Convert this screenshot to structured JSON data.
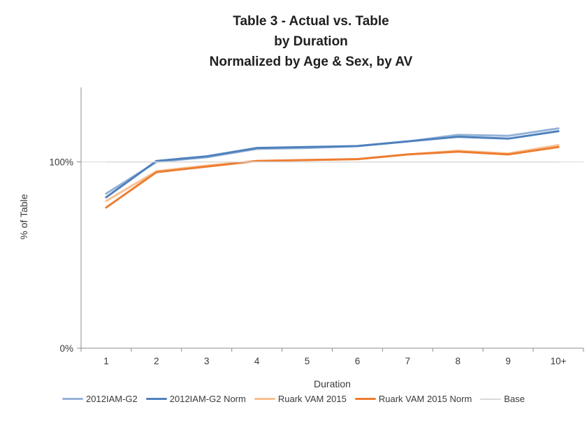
{
  "page": {
    "background": "#ffffff"
  },
  "chart_data": {
    "type": "line",
    "title_lines": [
      "Table 3 - Actual vs. Table",
      "by Duration",
      "Normalized by Age & Sex, by AV"
    ],
    "xlabel": "Duration",
    "ylabel": "% of Table",
    "categories": [
      "1",
      "2",
      "3",
      "4",
      "5",
      "6",
      "7",
      "8",
      "9",
      "10+"
    ],
    "ylim": [
      0,
      140
    ],
    "y_ticks": [
      {
        "value": 0,
        "label": "0%"
      },
      {
        "value": 100,
        "label": "100%"
      }
    ],
    "gridlines": [
      {
        "value": 100,
        "color": "#d9d9d9"
      }
    ],
    "legend_position": "bottom",
    "axis_color": "#8c8c8c",
    "tick_label_color": "#3a3a3a",
    "series": [
      {
        "name": "2012IAM-G2",
        "color": "#95B3D7",
        "width": 3,
        "values": [
          83,
          100,
          102.5,
          107,
          107.5,
          108.5,
          111,
          114.5,
          114,
          118
        ]
      },
      {
        "name": "2012IAM-G2 Norm",
        "color": "#4F81BD",
        "width": 3,
        "values": [
          81,
          100.5,
          103,
          107.5,
          108,
          108.5,
          111,
          113.5,
          112.5,
          116.5
        ]
      },
      {
        "name": "Ruark VAM 2015",
        "color": "#FABF8F",
        "width": 3,
        "values": [
          79,
          95,
          98,
          100.5,
          101,
          101.5,
          104,
          106,
          104.5,
          109
        ]
      },
      {
        "name": "Ruark VAM 2015 Norm",
        "color": "#ED7D31",
        "width": 3,
        "values": [
          75.5,
          94.5,
          97.5,
          100.5,
          101,
          101.5,
          104,
          105.5,
          104,
          108
        ]
      },
      {
        "name": "Base",
        "color": "#D9D9D9",
        "width": 1.5,
        "values": [
          100,
          100,
          100,
          100,
          100,
          100,
          100,
          100,
          100,
          100
        ]
      }
    ]
  }
}
